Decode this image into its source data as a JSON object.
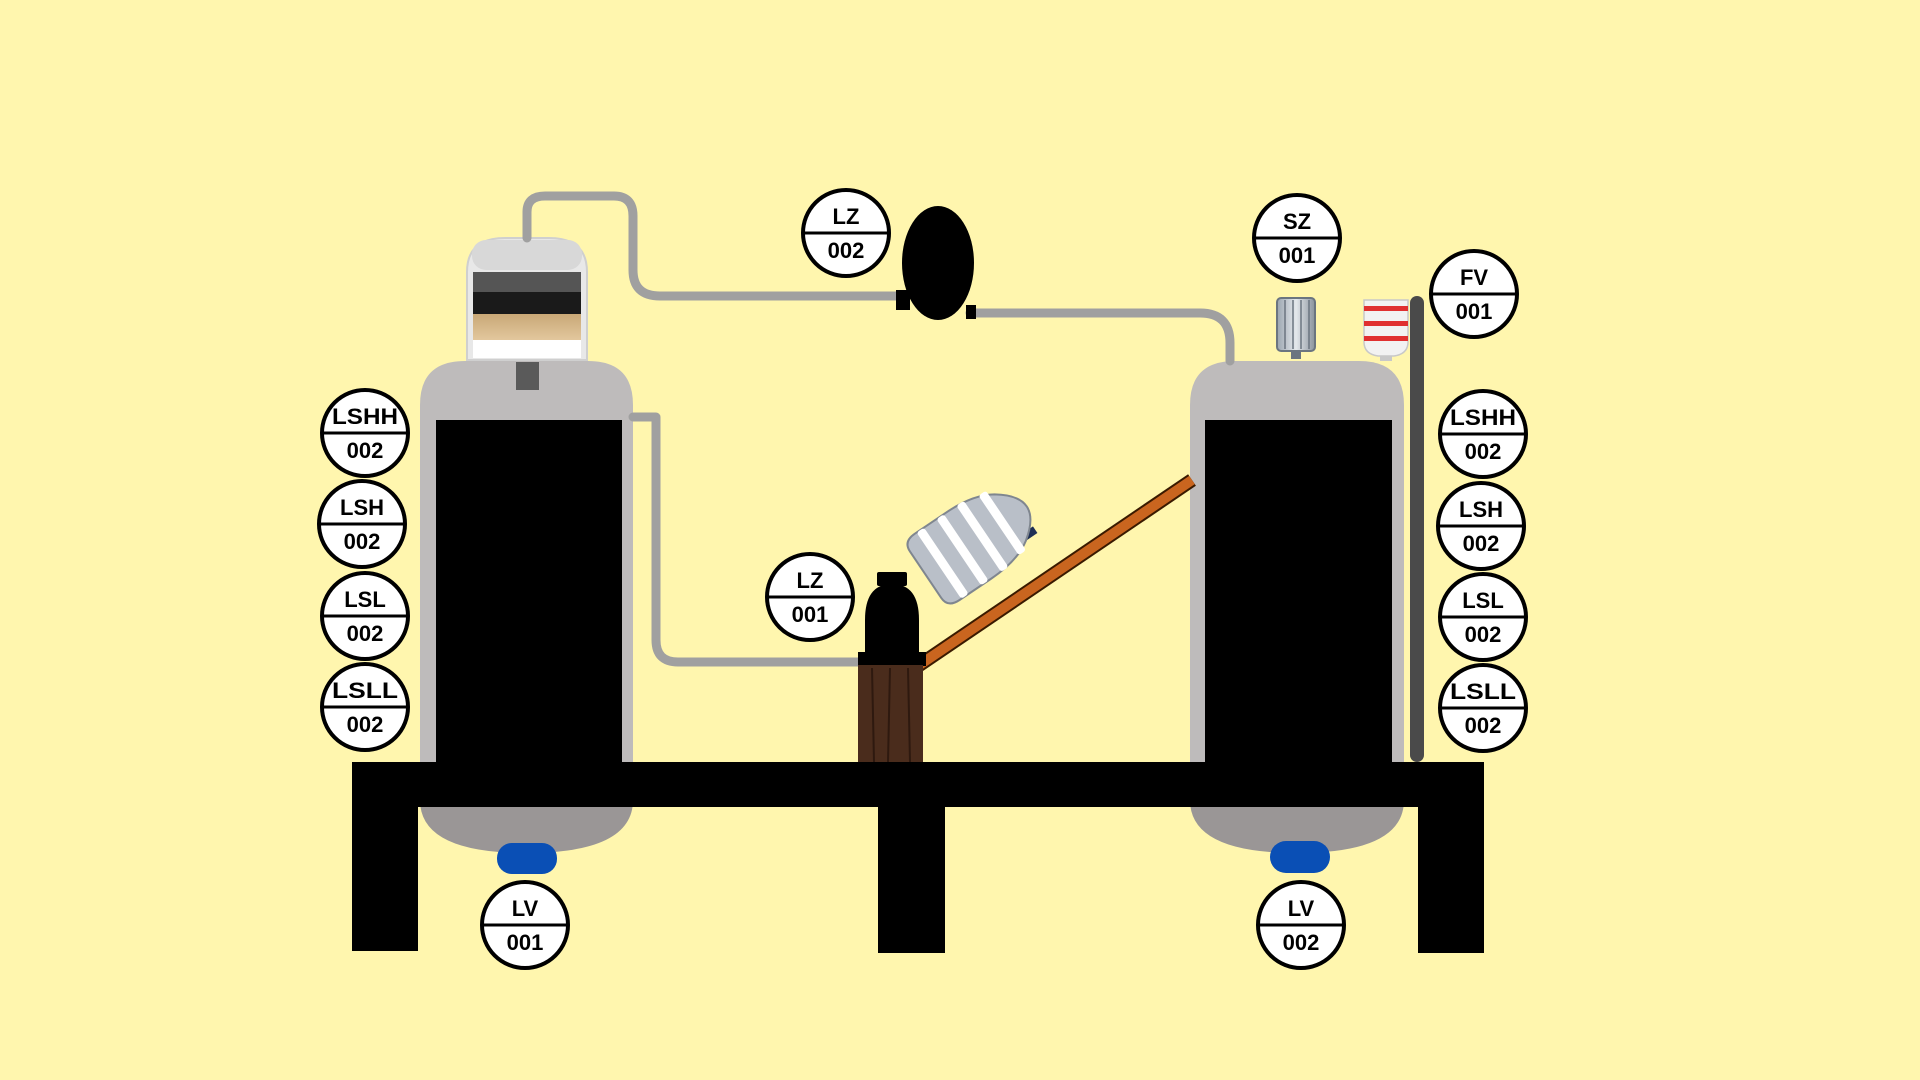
{
  "colors": {
    "background": "#fff6ae",
    "tank_shell": "#bebbbb",
    "tank_shell_dark": "#9a9696",
    "tank_inner": "#000000",
    "frame": "#000000",
    "pipe": "#a0a0a0",
    "conveyor": "#c9651f",
    "valve_blue": "#0a4fb5",
    "wood": "#4a2c1c",
    "stripe_red": "#e03030"
  },
  "instruments": [
    {
      "id": "lz-002",
      "tag": "LZ",
      "num": "002"
    },
    {
      "id": "lz-001",
      "tag": "LZ",
      "num": "001"
    },
    {
      "id": "sz-001",
      "tag": "SZ",
      "num": "001"
    },
    {
      "id": "fv-001",
      "tag": "FV",
      "num": "001"
    },
    {
      "id": "lshh-002-left",
      "tag": "LSHH",
      "num": "002"
    },
    {
      "id": "lsh-002-left",
      "tag": "LSH",
      "num": "002"
    },
    {
      "id": "lsl-002-left",
      "tag": "LSL",
      "num": "002"
    },
    {
      "id": "lsll-002-left",
      "tag": "LSLL",
      "num": "002"
    },
    {
      "id": "lshh-002-right",
      "tag": "LSHH",
      "num": "002"
    },
    {
      "id": "lsh-002-right",
      "tag": "LSH",
      "num": "002"
    },
    {
      "id": "lsl-002-right",
      "tag": "LSL",
      "num": "002"
    },
    {
      "id": "lsll-002-right",
      "tag": "LSLL",
      "num": "002"
    },
    {
      "id": "lv-001",
      "tag": "LV",
      "num": "001"
    },
    {
      "id": "lv-002",
      "tag": "LV",
      "num": "002"
    }
  ]
}
